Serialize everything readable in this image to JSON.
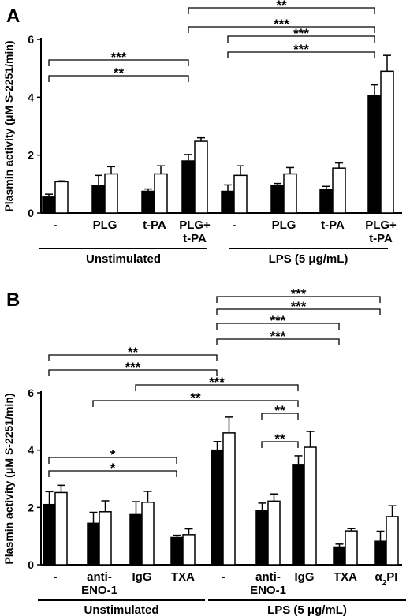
{
  "chart_data": [
    {
      "panel": "A",
      "type": "bar",
      "ylabel": "Plasmin activity (μM S-2251/min)",
      "ylim": [
        0,
        6
      ],
      "yticks": [
        "0",
        "2",
        "4",
        "6"
      ],
      "categories": [
        {
          "label": [
            "-"
          ]
        },
        {
          "label": [
            "PLG"
          ]
        },
        {
          "label": [
            "t-PA"
          ]
        },
        {
          "label": [
            "PLG+",
            "t-PA"
          ]
        },
        {
          "label": [
            "-"
          ]
        },
        {
          "label": [
            "PLG"
          ]
        },
        {
          "label": [
            "t-PA"
          ]
        },
        {
          "label": [
            "PLG+",
            "t-PA"
          ]
        }
      ],
      "series": [
        {
          "fill": "#000000",
          "values": [
            0.55,
            0.95,
            0.75,
            1.8,
            0.75,
            0.95,
            0.8,
            4.05
          ],
          "errors": [
            0.1,
            0.35,
            0.08,
            0.22,
            0.22,
            0.07,
            0.12,
            0.38
          ]
        },
        {
          "fill": "#ffffff",
          "values": [
            1.08,
            1.35,
            1.35,
            2.48,
            1.3,
            1.35,
            1.55,
            4.9
          ],
          "errors": [
            0.03,
            0.25,
            0.28,
            0.12,
            0.33,
            0.22,
            0.18,
            0.55
          ]
        }
      ],
      "groups": [
        {
          "label": "Unstimulated",
          "from": 0,
          "to": 3
        },
        {
          "label": "LPS (5 μg/mL)",
          "from": 4,
          "to": 7
        }
      ],
      "comparisons": [
        {
          "from": 3,
          "to": 7,
          "label": "**"
        },
        {
          "from": 3,
          "to": 7,
          "label": "***"
        },
        {
          "from": 4,
          "to": 7,
          "label": "***"
        },
        {
          "from": 4,
          "to": 7,
          "label": "***"
        },
        {
          "from": 0,
          "to": 3,
          "label": "***"
        },
        {
          "from": 0,
          "to": 3,
          "label": "**"
        }
      ]
    },
    {
      "panel": "B",
      "type": "bar",
      "ylabel": "Plasmin activity (μM S-2251/min)",
      "ylim": [
        0,
        6
      ],
      "yticks": [
        "0",
        "2",
        "4",
        "6"
      ],
      "categories": [
        {
          "label": [
            "-"
          ]
        },
        {
          "label": [
            "anti-",
            "ENO-1"
          ]
        },
        {
          "label": [
            "IgG"
          ]
        },
        {
          "label": [
            "TXA"
          ]
        },
        {
          "label": [
            "-"
          ]
        },
        {
          "label": [
            "anti-",
            "ENO-1"
          ]
        },
        {
          "label": [
            "IgG"
          ]
        },
        {
          "label": [
            "TXA"
          ]
        },
        {
          "label": [
            "α",
            "2",
            "PI"
          ]
        }
      ],
      "series": [
        {
          "fill": "#000000",
          "values": [
            2.1,
            1.45,
            1.75,
            0.95,
            4.0,
            1.9,
            3.5,
            0.62,
            0.82
          ],
          "errors": [
            0.45,
            0.38,
            0.45,
            0.08,
            0.3,
            0.25,
            0.3,
            0.1,
            0.35
          ]
        },
        {
          "fill": "#ffffff",
          "values": [
            2.52,
            1.85,
            2.18,
            1.05,
            4.6,
            2.22,
            4.1,
            1.18,
            1.68
          ],
          "errors": [
            0.25,
            0.38,
            0.38,
            0.2,
            0.55,
            0.25,
            0.55,
            0.08,
            0.38
          ]
        }
      ],
      "groups": [
        {
          "label": "Unstimulated",
          "from": 0,
          "to": 3
        },
        {
          "label": "LPS (5 μg/mL)",
          "from": 4,
          "to": 8
        }
      ],
      "comparisons": [
        {
          "from": 4,
          "to": 8,
          "label": "***"
        },
        {
          "from": 4,
          "to": 8,
          "label": "***"
        },
        {
          "from": 4,
          "to": 7,
          "label": "***"
        },
        {
          "from": 4,
          "to": 7,
          "label": "***"
        },
        {
          "from": 0,
          "to": 4,
          "label": "**"
        },
        {
          "from": 0,
          "to": 4,
          "label": "***"
        },
        {
          "from": 2,
          "to": 6,
          "label": "***"
        },
        {
          "from": 1,
          "to": 6,
          "label": "**"
        },
        {
          "from": 5,
          "to": 6,
          "label": "**"
        },
        {
          "from": 5,
          "to": 6,
          "label": "**"
        },
        {
          "from": 0,
          "to": 3,
          "label": "*"
        },
        {
          "from": 0,
          "to": 3,
          "label": "*"
        }
      ]
    }
  ]
}
